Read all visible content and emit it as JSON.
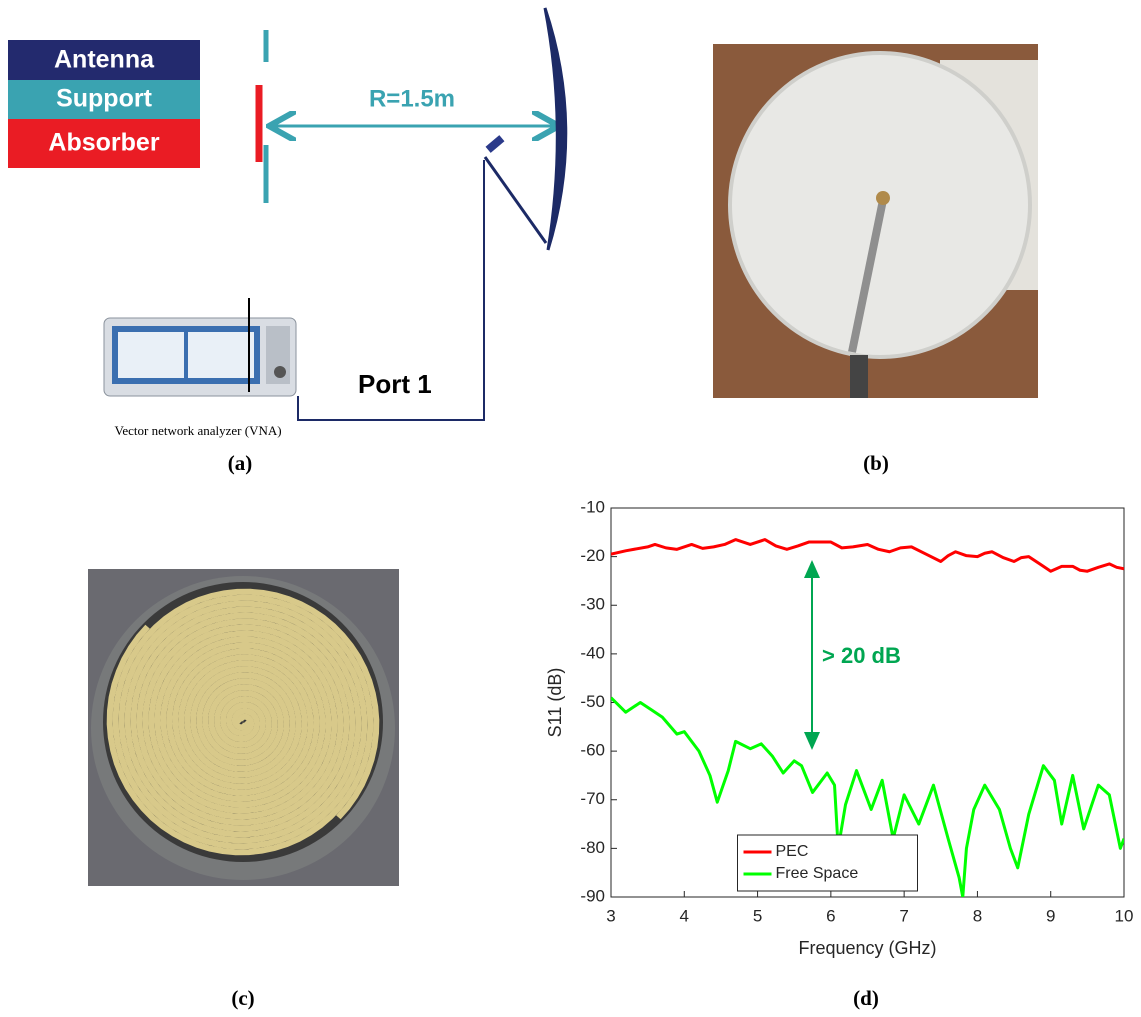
{
  "panel_a": {
    "legend": [
      "Antenna",
      "Support",
      "Absorber"
    ],
    "distance_label": "R=1.5m",
    "port_label": "Port 1",
    "vna_caption": "Vector network analyzer (VNA)"
  },
  "panel_labels": [
    "(a)",
    "(b)",
    "(c)",
    "(d)"
  ],
  "chart_data": {
    "type": "line",
    "xlabel": "Frequency (GHz)",
    "ylabel": "S11 (dB)",
    "annotation": "> 20 dB",
    "xlim": [
      3,
      10
    ],
    "ylim": [
      -90,
      -10
    ],
    "xticks": [
      3,
      4,
      5,
      6,
      7,
      8,
      9,
      10
    ],
    "yticks": [
      -90,
      -80,
      -70,
      -60,
      -50,
      -40,
      -30,
      -20,
      -10
    ],
    "legend": "lower center",
    "series": [
      {
        "name": "PEC",
        "color": "#ff0000",
        "x": [
          3,
          3.2,
          3.5,
          3.6,
          3.75,
          3.9,
          4.1,
          4.25,
          4.4,
          4.55,
          4.7,
          4.9,
          5.1,
          5.25,
          5.4,
          5.55,
          5.7,
          6,
          6.15,
          6.3,
          6.5,
          6.65,
          6.8,
          6.95,
          7.1,
          7.3,
          7.5,
          7.6,
          7.7,
          7.85,
          8,
          8.1,
          8.2,
          8.35,
          8.5,
          8.6,
          8.7,
          8.85,
          9,
          9.15,
          9.3,
          9.4,
          9.5,
          9.65,
          9.8,
          9.9,
          10
        ],
        "values": [
          -19.5,
          -18.8,
          -18,
          -17.5,
          -18.2,
          -18.5,
          -17.5,
          -18.3,
          -18,
          -17.5,
          -16.5,
          -17.5,
          -16.5,
          -17.8,
          -18.5,
          -17.8,
          -17,
          -17,
          -18.2,
          -18,
          -17.5,
          -18.5,
          -19,
          -18.2,
          -18,
          -19.5,
          -21,
          -19.8,
          -19,
          -19.8,
          -20,
          -19.3,
          -19,
          -20.2,
          -21,
          -20.2,
          -20,
          -21.5,
          -23,
          -22,
          -22,
          -22.8,
          -23,
          -22.2,
          -21.5,
          -22.2,
          -22.5
        ]
      },
      {
        "name": "Free Space",
        "color": "#00ff00",
        "x": [
          3,
          3.2,
          3.4,
          3.55,
          3.7,
          3.9,
          4,
          4.2,
          4.35,
          4.45,
          4.6,
          4.7,
          4.9,
          5.05,
          5.2,
          5.35,
          5.5,
          5.6,
          5.75,
          5.95,
          6.05,
          6.1,
          6.2,
          6.35,
          6.55,
          6.7,
          6.85,
          7,
          7.2,
          7.4,
          7.6,
          7.75,
          7.8,
          7.85,
          7.95,
          8.1,
          8.3,
          8.45,
          8.55,
          8.7,
          8.9,
          9.05,
          9.15,
          9.3,
          9.45,
          9.65,
          9.8,
          9.95,
          10
        ],
        "values": [
          -49,
          -52,
          -50,
          -51.5,
          -53,
          -56.5,
          -56,
          -60,
          -65,
          -70.5,
          -64,
          -58,
          -59.5,
          -58.5,
          -61,
          -64.5,
          -62,
          -63,
          -68.5,
          -64.5,
          -67,
          -80,
          -71,
          -64,
          -72,
          -66,
          -78,
          -69,
          -75,
          -67,
          -78,
          -86,
          -90,
          -80,
          -72,
          -67,
          -72,
          -80,
          -84,
          -73,
          -63,
          -66,
          -75,
          -65,
          -76,
          -67,
          -69,
          -80,
          -78
        ]
      }
    ]
  }
}
